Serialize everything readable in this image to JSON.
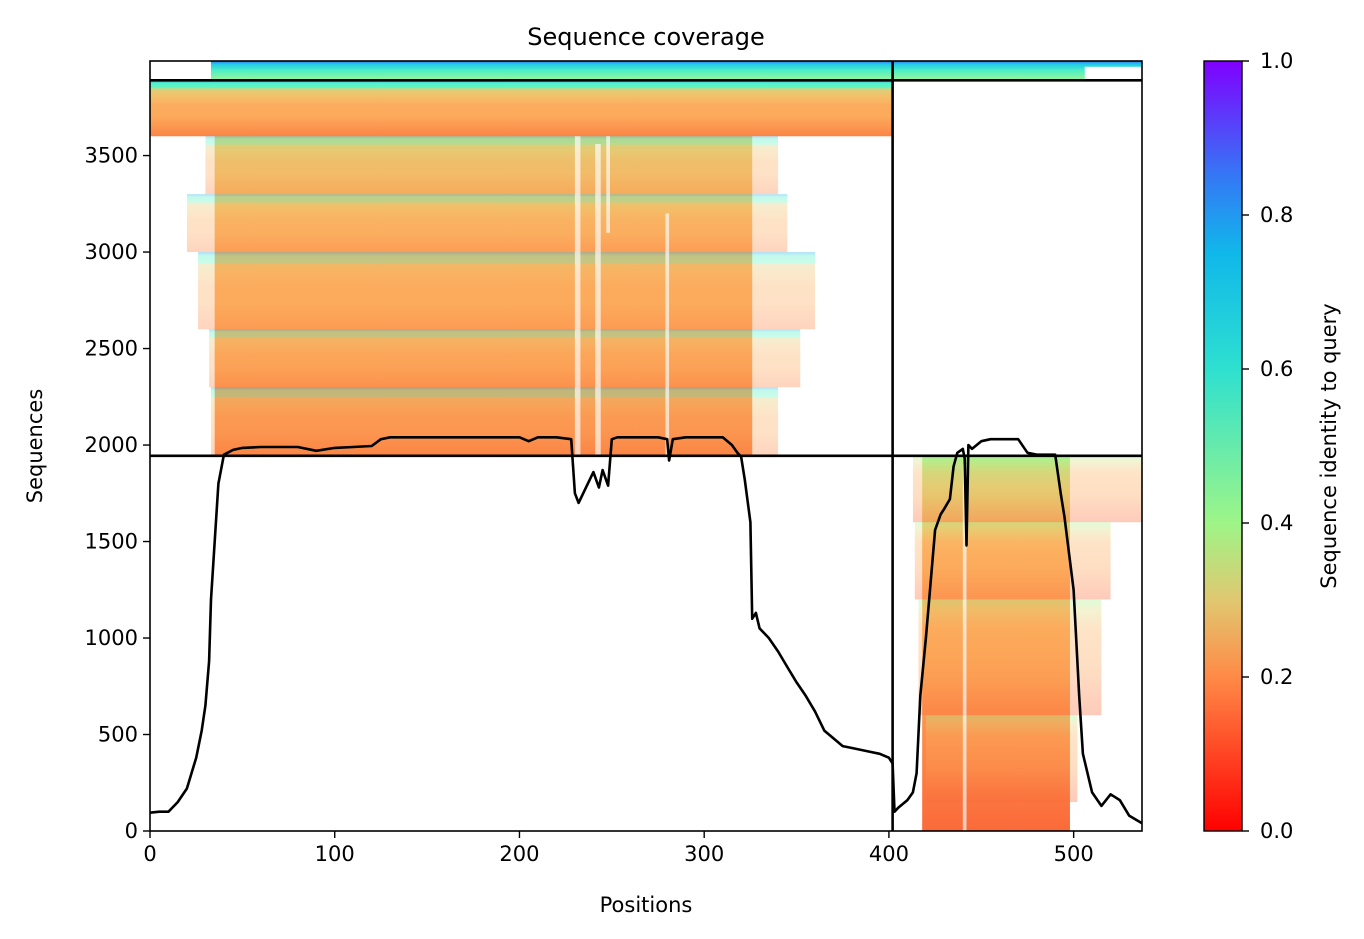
{
  "chart_data": {
    "type": "heatmap",
    "title": "Sequence coverage",
    "xlabel": "Positions",
    "ylabel": "Sequences",
    "colorbar_label": "Sequence identity to query",
    "xlim": [
      0,
      537
    ],
    "ylim": [
      0,
      3990
    ],
    "x_ticks": [
      0,
      100,
      200,
      300,
      400,
      500
    ],
    "y_ticks": [
      0,
      500,
      1000,
      1500,
      2000,
      2500,
      3000,
      3500
    ],
    "colorbar_ticks": [
      "0.0",
      "0.2",
      "0.4",
      "0.6",
      "0.8",
      "1.0"
    ],
    "colormap": "rainbow_r",
    "colors": {
      "low": "#ff0000",
      "mid": "#80ff80",
      "high": "#8000ff"
    },
    "chain_boundary_x": 402,
    "row_boundaries_y": [
      1944,
      3890
    ],
    "blocks": [
      {
        "name": "chain-1-pairs",
        "x_range": [
          0,
          402
        ],
        "y_range": [
          0,
          1944
        ],
        "filled": false
      },
      {
        "name": "chain-2-pairs",
        "x_range": [
          402,
          537
        ],
        "y_range": [
          0,
          1944
        ],
        "identity_range": [
          0.18,
          0.45
        ]
      },
      {
        "name": "chain-1-unpaired",
        "x_range": [
          0,
          402
        ],
        "y_range": [
          1944,
          3890
        ],
        "identity_range": [
          0.22,
          0.55
        ]
      },
      {
        "name": "chain-2-unpaired",
        "x_range": [
          402,
          537
        ],
        "y_range": [
          1944,
          3890
        ],
        "filled": false
      },
      {
        "name": "top-query-rows",
        "x_range": [
          0,
          537
        ],
        "y_range": [
          3890,
          3990
        ],
        "identity_range": [
          0.55,
          0.9
        ]
      }
    ],
    "coverage_line": {
      "x": [
        0,
        5,
        10,
        15,
        20,
        25,
        28,
        30,
        32,
        33,
        35,
        37,
        40,
        45,
        50,
        60,
        80,
        90,
        100,
        110,
        120,
        125,
        130,
        150,
        180,
        200,
        205,
        210,
        220,
        228,
        230,
        232,
        235,
        240,
        243,
        245,
        248,
        250,
        253,
        260,
        275,
        280,
        281,
        283,
        290,
        300,
        310,
        315,
        318,
        320,
        322,
        325,
        326,
        328,
        330,
        335,
        340,
        345,
        350,
        355,
        360,
        365,
        370,
        375,
        380,
        390,
        395,
        400,
        402,
        403,
        405,
        410,
        413,
        415,
        417,
        420,
        425,
        428,
        430,
        433,
        435,
        437,
        440,
        441,
        442,
        443,
        445,
        450,
        455,
        460,
        465,
        470,
        475,
        480,
        485,
        490,
        493,
        495,
        500,
        503,
        505,
        510,
        515,
        520,
        525,
        530,
        537
      ],
      "y": [
        95,
        100,
        100,
        150,
        220,
        380,
        520,
        650,
        880,
        1200,
        1500,
        1800,
        1950,
        1975,
        1985,
        1990,
        1990,
        1970,
        1985,
        1990,
        1995,
        2030,
        2040,
        2040,
        2040,
        2040,
        2020,
        2040,
        2040,
        2030,
        1750,
        1700,
        1760,
        1860,
        1780,
        1870,
        1790,
        2030,
        2040,
        2040,
        2040,
        2030,
        1920,
        2030,
        2040,
        2040,
        2040,
        2000,
        1960,
        1940,
        1820,
        1600,
        1100,
        1130,
        1050,
        1000,
        930,
        850,
        770,
        700,
        620,
        520,
        480,
        440,
        430,
        410,
        400,
        380,
        350,
        100,
        120,
        160,
        200,
        300,
        700,
        1000,
        1560,
        1640,
        1670,
        1720,
        1890,
        1960,
        1980,
        1930,
        1480,
        2000,
        1980,
        2020,
        2030,
        2030,
        2030,
        2030,
        1960,
        1950,
        1950,
        1950,
        1750,
        1630,
        1250,
        700,
        400,
        200,
        130,
        190,
        160,
        80,
        40
      ]
    }
  }
}
